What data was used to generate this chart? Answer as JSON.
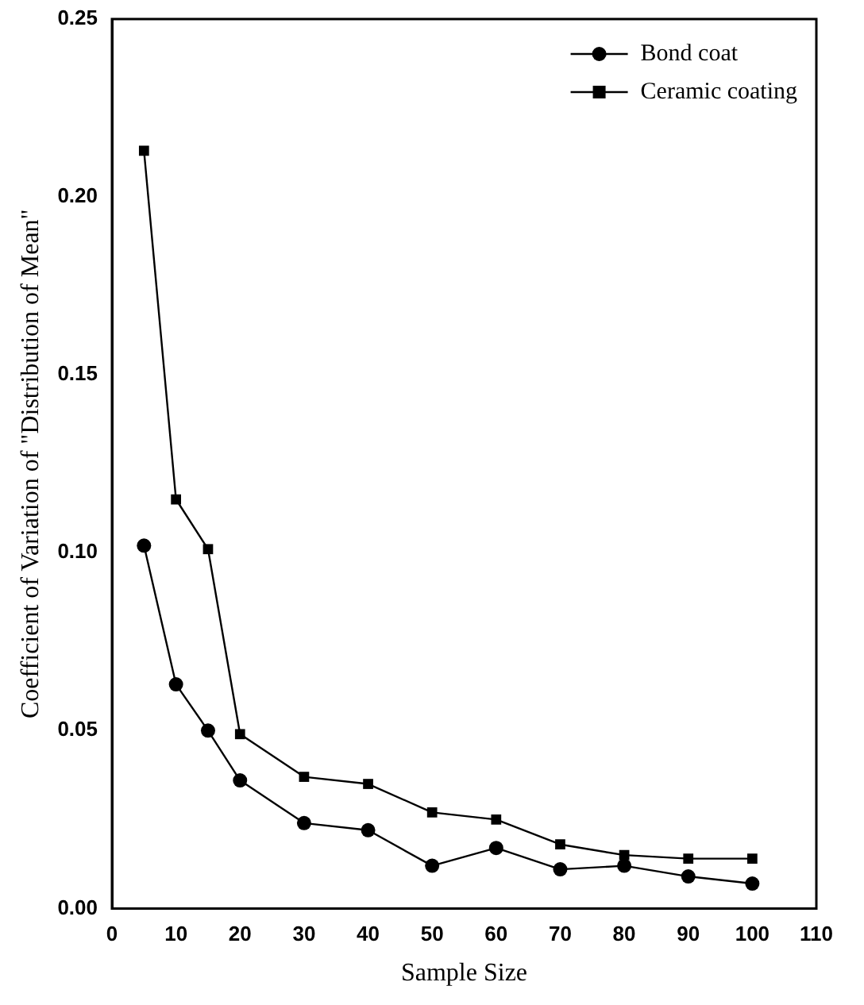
{
  "chart_data": {
    "type": "line",
    "xlabel": "Sample Size",
    "ylabel": "Coefficient of Variation of \"Distribution of Mean\"",
    "x": [
      5,
      10,
      15,
      20,
      30,
      40,
      50,
      60,
      70,
      80,
      90,
      100
    ],
    "series": [
      {
        "name": "Bond coat",
        "color": "#000000",
        "marker": "circle",
        "values": [
          0.102,
          0.063,
          0.05,
          0.036,
          0.024,
          0.022,
          0.012,
          0.017,
          0.011,
          0.012,
          0.009,
          0.007
        ]
      },
      {
        "name": "Ceramic coating",
        "color": "#000000",
        "marker": "square",
        "values": [
          0.213,
          0.115,
          0.101,
          0.049,
          0.037,
          0.035,
          0.027,
          0.025,
          0.018,
          0.015,
          0.014,
          0.014
        ]
      }
    ],
    "xlim": [
      0,
      110
    ],
    "xticks": [
      0,
      10,
      20,
      30,
      40,
      50,
      60,
      70,
      80,
      90,
      100,
      110
    ],
    "ylim": [
      0,
      0.25
    ],
    "yticks": [
      {
        "value": 0,
        "label": "0.00"
      },
      {
        "value": 0.05,
        "label": "0.05"
      },
      {
        "value": 0.1,
        "label": "0.10"
      },
      {
        "value": 0.15,
        "label": "0.15"
      },
      {
        "value": 0.2,
        "label": "0.20"
      },
      {
        "value": 0.25,
        "label": "0.25"
      }
    ],
    "legend": "top right",
    "grid": false,
    "line_style": "solid"
  }
}
